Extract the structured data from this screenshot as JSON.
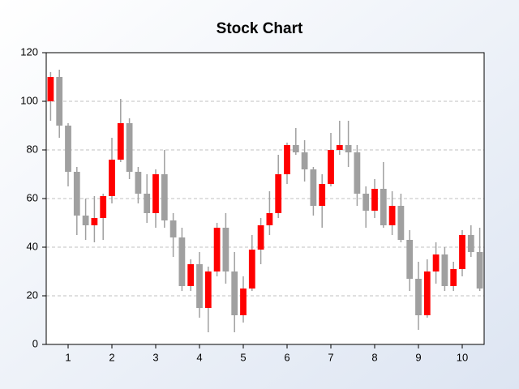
{
  "chart_data": {
    "type": "candlestick",
    "title": "Stock Chart",
    "x": [
      0.6,
      0.8,
      1.0,
      1.2,
      1.4,
      1.6,
      1.8,
      2.0,
      2.2,
      2.4,
      2.6,
      2.8,
      3.0,
      3.2,
      3.4,
      3.6,
      3.8,
      4.0,
      4.2,
      4.4,
      4.6,
      4.8,
      5.0,
      5.2,
      5.4,
      5.6,
      5.8,
      6.0,
      6.2,
      6.4,
      6.6,
      6.8,
      7.0,
      7.2,
      7.4,
      7.6,
      7.8,
      8.0,
      8.2,
      8.4,
      8.6,
      8.8,
      9.0,
      9.2,
      9.4,
      9.6,
      9.8,
      10.0,
      10.2,
      10.4
    ],
    "open": [
      100,
      110,
      90,
      71,
      53,
      49,
      52,
      61,
      76,
      91,
      71,
      62,
      54,
      70,
      51,
      44,
      24,
      33,
      15,
      30,
      48,
      30,
      12,
      23,
      39,
      49,
      54,
      70,
      82,
      79,
      72,
      57,
      66,
      80,
      82,
      79,
      62,
      55,
      64,
      49,
      57,
      43,
      27,
      12,
      30,
      37,
      24,
      31,
      45,
      38
    ],
    "high": [
      112,
      113,
      91,
      73,
      60,
      61,
      62,
      85,
      101,
      93,
      73,
      70,
      72,
      80,
      54,
      48,
      35,
      38,
      32,
      50,
      54,
      38,
      28,
      45,
      52,
      63,
      78,
      83,
      89,
      84,
      73,
      70,
      87,
      92,
      92,
      82,
      65,
      68,
      75,
      63,
      62,
      47,
      34,
      35,
      42,
      40,
      34,
      47,
      49,
      48
    ],
    "low": [
      92,
      85,
      65,
      45,
      43,
      42,
      43,
      58,
      75,
      68,
      58,
      50,
      48,
      48,
      36,
      22,
      22,
      11,
      5,
      28,
      25,
      5,
      9,
      22,
      33,
      45,
      52,
      66,
      78,
      67,
      53,
      48,
      65,
      78,
      73,
      57,
      48,
      52,
      48,
      45,
      42,
      22,
      6,
      11,
      25,
      22,
      22,
      28,
      36,
      22
    ],
    "close": [
      110,
      90,
      71,
      53,
      49,
      52,
      61,
      76,
      91,
      71,
      62,
      54,
      70,
      51,
      44,
      24,
      33,
      15,
      30,
      48,
      30,
      12,
      23,
      39,
      49,
      54,
      70,
      82,
      79,
      72,
      57,
      66,
      80,
      82,
      79,
      62,
      55,
      64,
      49,
      57,
      43,
      27,
      12,
      30,
      37,
      24,
      31,
      45,
      38,
      23
    ],
    "up_color": "#ff0000",
    "down_color": "#a0a0a0",
    "wick_color": "#a0a0a0",
    "xlim": [
      0.5,
      10.5
    ],
    "xticks": [
      1,
      2,
      3,
      4,
      5,
      6,
      7,
      8,
      9,
      10
    ],
    "ylim": [
      0,
      120
    ],
    "yticks": [
      0,
      20,
      40,
      60,
      80,
      100,
      120
    ],
    "grid": true
  }
}
